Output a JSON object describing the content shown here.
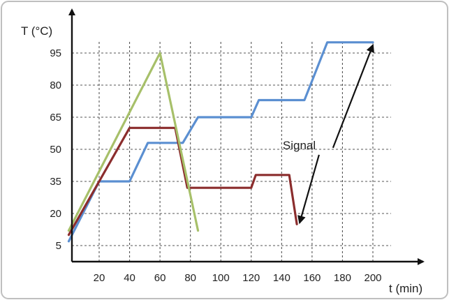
{
  "chart_data": {
    "type": "line",
    "xlabel": "t (min)",
    "ylabel": "T (°C)",
    "xlim": [
      0,
      210
    ],
    "ylim": [
      0,
      105
    ],
    "x_ticks": [
      20,
      40,
      60,
      80,
      100,
      120,
      140,
      160,
      180,
      200
    ],
    "y_ticks": [
      5,
      20,
      35,
      50,
      65,
      80,
      95
    ],
    "grid": "dashed",
    "colors": {
      "blue": "#5b8fd1",
      "red": "#8b2d2d",
      "green": "#a7c06a",
      "arrow": "#111111"
    },
    "series": [
      {
        "color": "#5b8fd1",
        "x": [
          0,
          20,
          40,
          52,
          75,
          85,
          120,
          125,
          155,
          170,
          200
        ],
        "y": [
          7,
          35,
          35,
          53,
          53,
          65,
          65,
          73,
          73,
          100,
          100
        ]
      },
      {
        "color": "#8b2d2d",
        "x": [
          0,
          40,
          70,
          78,
          120,
          123,
          145,
          150
        ],
        "y": [
          10,
          60,
          60,
          32,
          32,
          38,
          38,
          15
        ]
      },
      {
        "color": "#a7c06a",
        "x": [
          0,
          60,
          85
        ],
        "y": [
          12,
          95,
          12
        ]
      }
    ],
    "annotations": [
      {
        "text": "Signal",
        "text_at": [
          160,
          52
        ],
        "arrows_to": [
          [
            150,
            15
          ],
          [
            200,
            100
          ]
        ]
      }
    ]
  }
}
